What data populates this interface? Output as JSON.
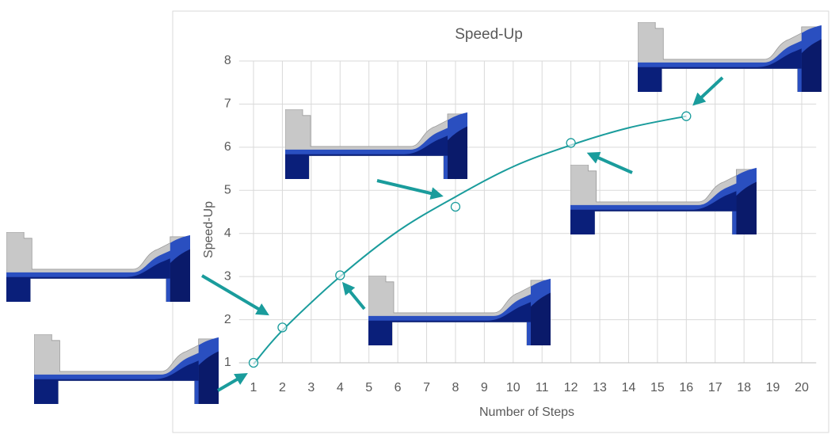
{
  "chart_data": {
    "type": "scatter",
    "title": "Speed-Up",
    "x_label": "Number of Steps",
    "y_label": "Speed-Up",
    "xlim": [
      0.5,
      20.5
    ],
    "xticks": [
      1,
      2,
      3,
      4,
      5,
      6,
      7,
      8,
      9,
      10,
      11,
      12,
      13,
      14,
      15,
      16,
      17,
      18,
      19,
      20
    ],
    "ylim": [
      1,
      8
    ],
    "yticks": [
      1,
      2,
      3,
      4,
      5,
      6,
      7,
      8
    ],
    "grid": true,
    "series": [
      {
        "type": "scatter",
        "color": "#1a9c9c",
        "x": [
          1,
          2,
          4,
          8,
          12,
          16
        ],
        "values": [
          1,
          1.82,
          3.03,
          4.62,
          6.1,
          6.72
        ]
      },
      {
        "type": "line",
        "color": "#1a9c9c",
        "x": [
          1,
          2,
          4,
          6,
          8,
          10,
          12,
          14,
          16
        ],
        "values": [
          0.97,
          1.75,
          3.0,
          4.05,
          4.85,
          5.55,
          6.05,
          6.45,
          6.72
        ]
      }
    ]
  }
}
